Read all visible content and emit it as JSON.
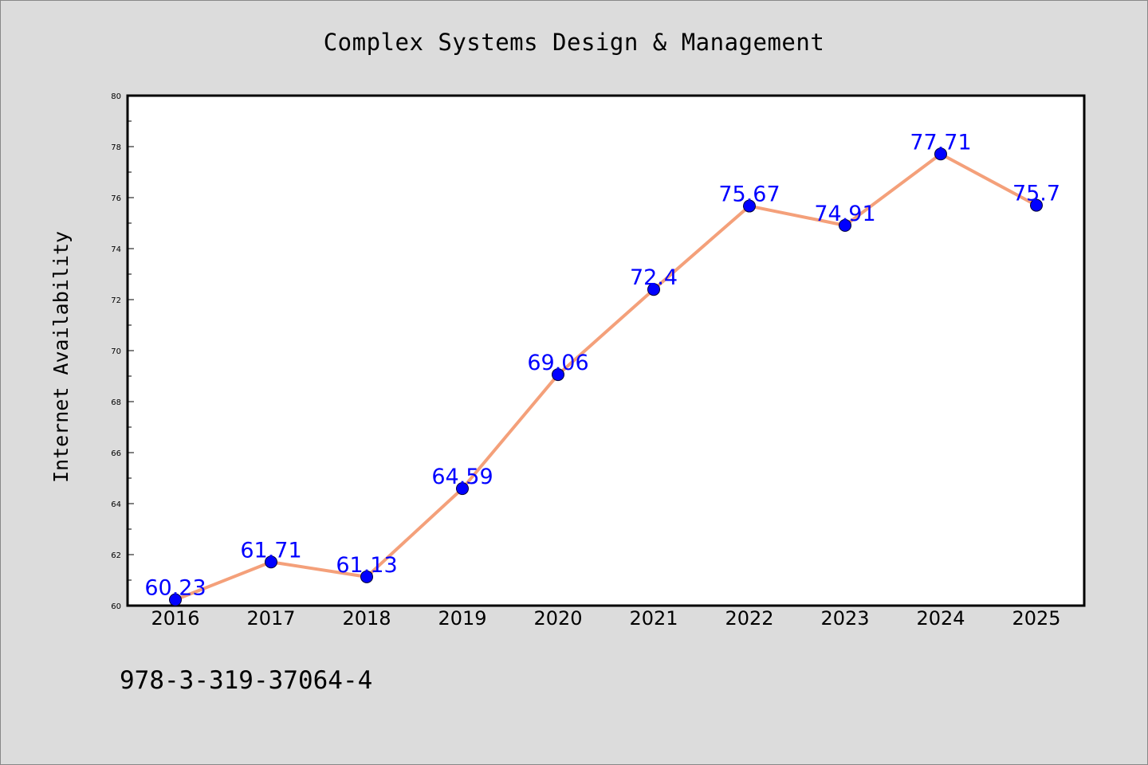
{
  "chart_data": {
    "type": "line",
    "title": "Complex Systems Design & Management",
    "xlabel": "",
    "ylabel": "Internet Availability",
    "x": [
      "2016",
      "2017",
      "2018",
      "2019",
      "2020",
      "2021",
      "2022",
      "2023",
      "2024",
      "2025"
    ],
    "series": [
      {
        "values": [
          60.23,
          61.71,
          61.13,
          64.59,
          69.06,
          72.4,
          75.67,
          74.91,
          77.71,
          75.7
        ],
        "labels": [
          "60.23",
          "61.71",
          "61.13",
          "64.59",
          "69.06",
          "72.4",
          "75.67",
          "74.91",
          "77.71",
          "75.7"
        ],
        "line_color": "#f4a07a",
        "marker_color": "#0000ff"
      }
    ],
    "ylim": [
      60,
      80
    ],
    "yticks": [
      60,
      62,
      64,
      66,
      68,
      70,
      72,
      74,
      76,
      78,
      80
    ],
    "grid": false,
    "legend": "none"
  },
  "footer": {
    "isbn": "978-3-319-37064-4"
  }
}
